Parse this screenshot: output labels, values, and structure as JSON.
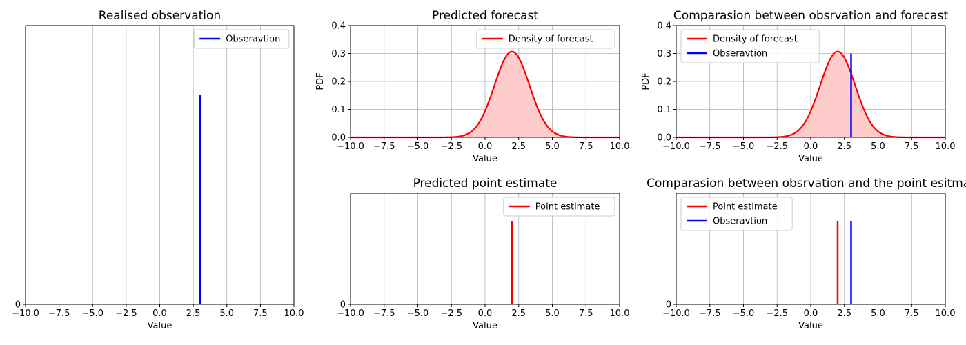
{
  "chart_data": [
    {
      "type": "line",
      "title": "Realised observation",
      "xlabel": "Value",
      "ylabel": "",
      "xlim": [
        -10,
        10
      ],
      "x_ticks": [
        "−10.0",
        "−7.5",
        "−5.0",
        "−2.5",
        "0.0",
        "2.5",
        "5.0",
        "7.5",
        "10.0"
      ],
      "y_ticks": [
        "0"
      ],
      "grid": "x",
      "legend": {
        "placement": "upper-right",
        "entries": [
          "Obseravtion"
        ]
      },
      "lines": [
        {
          "name": "Obseravtion",
          "x": 3,
          "height": 0.75,
          "color": "#0000ff"
        }
      ]
    },
    {
      "type": "area",
      "title": "Predicted forecast",
      "xlabel": "Value",
      "ylabel": "PDF",
      "xlim": [
        -10,
        10
      ],
      "ylim": [
        0,
        0.4
      ],
      "x_ticks": [
        "−10.0",
        "−7.5",
        "−5.0",
        "−2.5",
        "0.0",
        "2.5",
        "5.0",
        "7.5",
        "10.0"
      ],
      "y_ticks": [
        "0.0",
        "0.1",
        "0.2",
        "0.3",
        "0.4"
      ],
      "grid": "both",
      "legend": {
        "placement": "upper-right",
        "entries": [
          "Density of forecast"
        ]
      },
      "series": [
        {
          "name": "Density of forecast",
          "distribution": "normal",
          "mean": 2,
          "sd": 1.3,
          "color": "#ff0000",
          "fill": "#ffcccc"
        }
      ]
    },
    {
      "type": "area",
      "title": "Comparasion between obsrvation and forecast",
      "xlabel": "Value",
      "ylabel": "PDF",
      "xlim": [
        -10,
        10
      ],
      "ylim": [
        0,
        0.4
      ],
      "x_ticks": [
        "−10.0",
        "−7.5",
        "−5.0",
        "−2.5",
        "0.0",
        "2.5",
        "5.0",
        "7.5",
        "10.0"
      ],
      "y_ticks": [
        "0.0",
        "0.1",
        "0.2",
        "0.3",
        "0.4"
      ],
      "grid": "both",
      "legend": {
        "placement": "upper-left",
        "entries": [
          "Density of forecast",
          "Obseravtion"
        ]
      },
      "series": [
        {
          "name": "Density of forecast",
          "distribution": "normal",
          "mean": 2,
          "sd": 1.3,
          "color": "#ff0000",
          "fill": "#ffcccc"
        }
      ],
      "lines": [
        {
          "name": "Obseravtion",
          "x": 3,
          "height": 0.3,
          "color": "#0000ff"
        }
      ]
    },
    {
      "type": "line",
      "title": "Predicted point estimate",
      "xlabel": "Value",
      "ylabel": "",
      "xlim": [
        -10,
        10
      ],
      "x_ticks": [
        "−10.0",
        "−7.5",
        "−5.0",
        "−2.5",
        "0.0",
        "2.5",
        "5.0",
        "7.5",
        "10.0"
      ],
      "y_ticks": [
        "0"
      ],
      "grid": "x",
      "legend": {
        "placement": "upper-right",
        "entries": [
          "Point estimate"
        ]
      },
      "lines": [
        {
          "name": "Point estimate",
          "x": 2,
          "height": 0.75,
          "color": "#ff0000"
        }
      ]
    },
    {
      "type": "line",
      "title": "Comparasion between obsrvation and the point esitmat",
      "xlabel": "Value",
      "ylabel": "",
      "xlim": [
        -10,
        10
      ],
      "x_ticks": [
        "−10.0",
        "−7.5",
        "−5.0",
        "−2.5",
        "0.0",
        "2.5",
        "5.0",
        "7.5",
        "10.0"
      ],
      "y_ticks": [
        "0"
      ],
      "grid": "x",
      "legend": {
        "placement": "upper-left",
        "entries": [
          "Point estimate",
          "Obseravtion"
        ]
      },
      "lines": [
        {
          "name": "Point estimate",
          "x": 2,
          "height": 0.75,
          "color": "#ff0000"
        },
        {
          "name": "Obseravtion",
          "x": 3,
          "height": 0.75,
          "color": "#0000ff"
        }
      ]
    }
  ]
}
